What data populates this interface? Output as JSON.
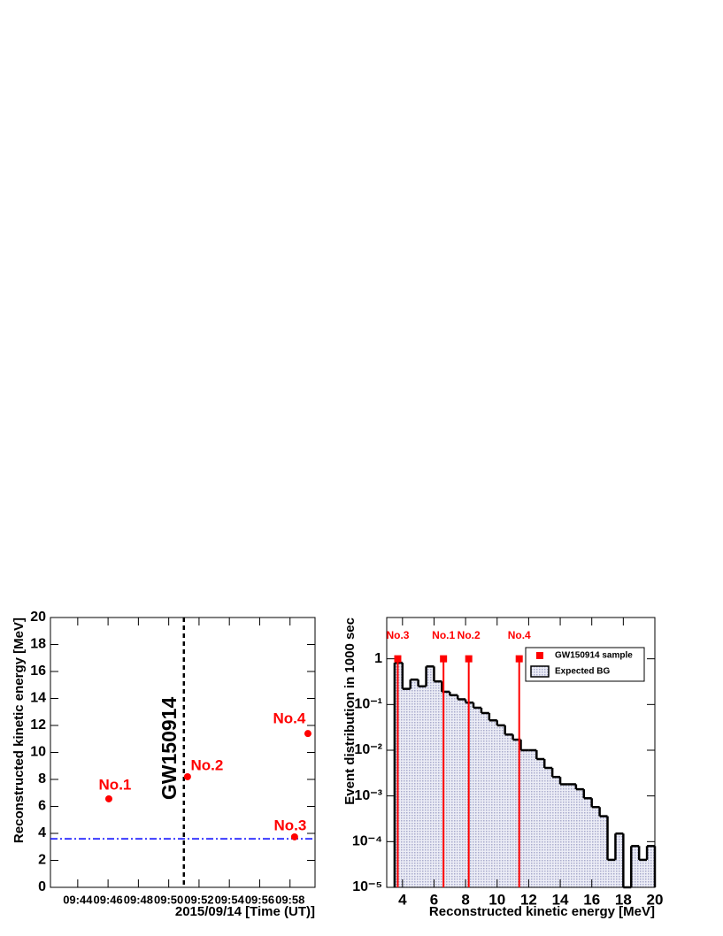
{
  "chart_data": [
    {
      "type": "scatter",
      "x_label": "2015/09/14 [Time (UT)]",
      "y_label": "Reconstructed kinetic energy [MeV]",
      "x": [
        46.05,
        51.24,
        58.3,
        59.18
      ],
      "y": [
        6.56,
        8.2,
        3.74,
        11.4
      ],
      "point_labels": [
        "No.1",
        "No.2",
        "No.3",
        "No.4"
      ],
      "color": "#ff0000",
      "event_label": "GW150914",
      "event_x": 51.0,
      "threshold": 3.6,
      "threshold_color": "#0000ff",
      "xlim": [
        42.2,
        59.65
      ],
      "xticks": [
        {
          "value": 44,
          "label": "09:44"
        },
        {
          "value": 46,
          "label": "09:46"
        },
        {
          "value": 48,
          "label": "09:48"
        },
        {
          "value": 50,
          "label": "09:50"
        },
        {
          "value": 52,
          "label": "09:52"
        },
        {
          "value": 54,
          "label": "09:54"
        },
        {
          "value": 56,
          "label": "09:56"
        },
        {
          "value": 58,
          "label": "09:58"
        }
      ],
      "ylim": [
        0,
        20
      ],
      "yticks": [
        0,
        2,
        4,
        6,
        8,
        10,
        12,
        14,
        16,
        18,
        20
      ]
    },
    {
      "type": "histogram",
      "x_label": "Reconstructed kinetic energy [MeV]",
      "y_label": "Event distribution in 1000 sec",
      "log_y": true,
      "bins": [
        3.5,
        4,
        4.5,
        5,
        5.5,
        6,
        6.5,
        7,
        7.5,
        8,
        8.5,
        9,
        9.5,
        10,
        10.5,
        11,
        11.5,
        12,
        12.5,
        13,
        13.5,
        14,
        14.5,
        15,
        15.5,
        16,
        16.5,
        17,
        17.5,
        18,
        18.5,
        19,
        19.5,
        20
      ],
      "values": [
        0.82,
        0.22,
        0.35,
        0.25,
        0.68,
        0.32,
        0.19,
        0.16,
        0.13,
        0.11,
        0.085,
        0.065,
        0.045,
        0.035,
        0.022,
        0.017,
        0.01,
        0.01,
        0.0064,
        0.0041,
        0.0026,
        0.0018,
        0.0018,
        0.0014,
        0.00089,
        0.00057,
        0.00036,
        4e-05,
        0.00015,
        0,
        8e-05,
        4e-05,
        8e-05
      ],
      "bg_name": "Expected BG",
      "bg_color": "#d4d5e8",
      "markers": {
        "name": "GW150914 sample",
        "color": "#ff0000",
        "x": [
          3.7,
          6.6,
          8.2,
          11.4
        ],
        "y": [
          1,
          1,
          1,
          1
        ],
        "labels": [
          "No.3",
          "No.1",
          "No.2",
          "No.4"
        ]
      },
      "legend": "upper right",
      "xlim": [
        3,
        20
      ],
      "xticks": [
        4,
        6,
        8,
        10,
        12,
        14,
        16,
        18,
        20
      ],
      "ylim": [
        1e-05,
        8
      ],
      "yticks": [
        {
          "value": 1e-05,
          "label": "10⁻⁵"
        },
        {
          "value": 0.0001,
          "label": "10⁻⁴"
        },
        {
          "value": 0.001,
          "label": "10⁻³"
        },
        {
          "value": 0.01,
          "label": "10⁻²"
        },
        {
          "value": 0.1,
          "label": "10⁻¹"
        },
        1
      ]
    }
  ]
}
